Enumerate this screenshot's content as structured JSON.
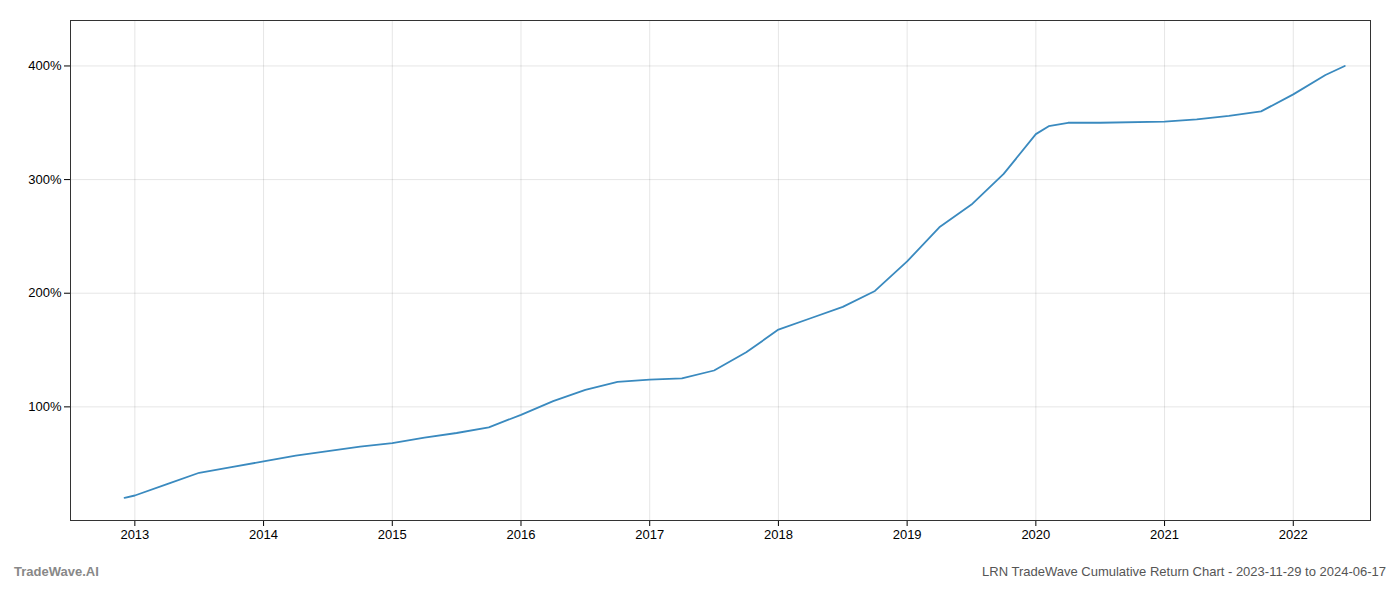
{
  "chart_data": {
    "type": "line",
    "title": "LRN TradeWave Cumulative Return Chart - 2023-11-29 to 2024-06-17",
    "annotations": [
      "TradeWave.AI"
    ],
    "color": "#3a8abf",
    "grid": true,
    "x": [
      2012.92,
      2013.0,
      2013.25,
      2013.5,
      2013.75,
      2014.0,
      2014.25,
      2014.5,
      2014.75,
      2015.0,
      2015.25,
      2015.5,
      2015.75,
      2016.0,
      2016.25,
      2016.5,
      2016.75,
      2017.0,
      2017.25,
      2017.5,
      2017.75,
      2018.0,
      2018.25,
      2018.5,
      2018.75,
      2019.0,
      2019.25,
      2019.5,
      2019.75,
      2020.0,
      2020.1,
      2020.25,
      2020.5,
      2021.0,
      2021.25,
      2021.5,
      2021.75,
      2022.0,
      2022.25,
      2022.4
    ],
    "values": [
      20,
      22,
      32,
      42,
      47,
      52,
      57,
      61,
      65,
      68,
      73,
      77,
      82,
      93,
      105,
      115,
      122,
      124,
      125,
      132,
      148,
      168,
      178,
      188,
      202,
      228,
      258,
      278,
      305,
      340,
      347,
      350,
      350,
      351,
      353,
      356,
      360,
      375,
      392,
      400
    ],
    "xlim": [
      2012.5,
      2022.6
    ],
    "xticks": [
      2013,
      2014,
      2015,
      2016,
      2017,
      2018,
      2019,
      2020,
      2021,
      2022
    ],
    "ylim": [
      0,
      440
    ],
    "yticks": [
      {
        "value": 100,
        "label": "100%"
      },
      {
        "value": 200,
        "label": "200%"
      },
      {
        "value": 300,
        "label": "300%"
      },
      {
        "value": 400,
        "label": "400%"
      }
    ]
  }
}
